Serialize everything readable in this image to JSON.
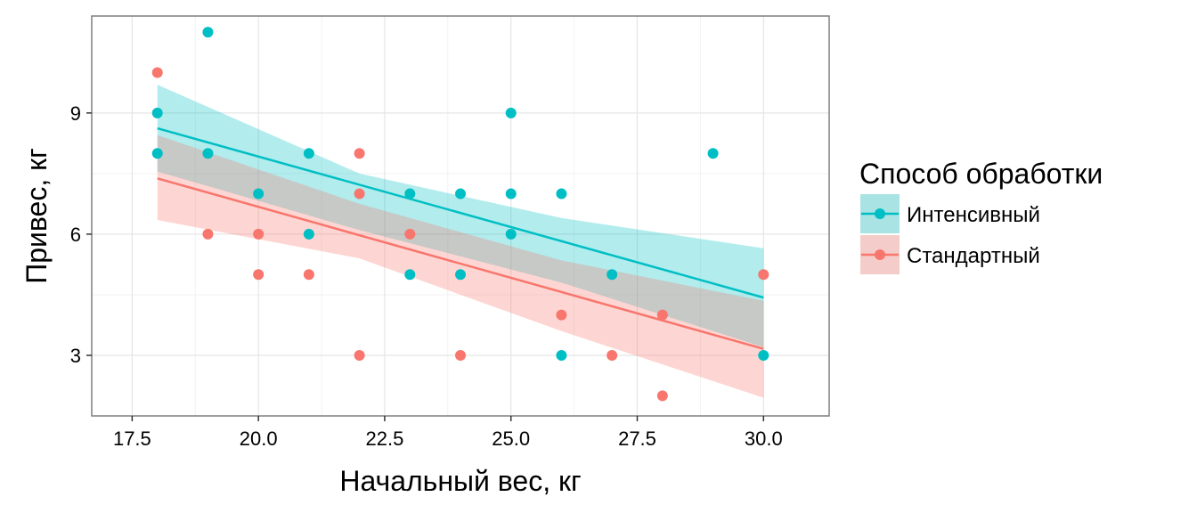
{
  "chart_data": {
    "type": "scatter",
    "title": "",
    "xlabel": "Начальный вес, кг",
    "ylabel": "Привес, кг",
    "xlim": [
      16.7,
      31.3
    ],
    "ylim": [
      1.5,
      11.4
    ],
    "x_ticks": [
      17.5,
      20.0,
      22.5,
      25.0,
      27.5,
      30.0
    ],
    "x_tick_labels": [
      "17.5",
      "20.0",
      "22.5",
      "25.0",
      "27.5",
      "30.0"
    ],
    "y_ticks": [
      3,
      6,
      9
    ],
    "y_tick_labels": [
      "3",
      "6",
      "9"
    ],
    "grid": true,
    "legend": {
      "title": "Способ обработки",
      "position": "right"
    },
    "series": [
      {
        "name": "Интенсивный",
        "color": "#00BFC4",
        "ribbon_color": "#00BFC4",
        "points": [
          [
            18,
            9
          ],
          [
            18,
            8
          ],
          [
            19,
            11
          ],
          [
            19,
            8
          ],
          [
            20,
            7
          ],
          [
            21,
            8
          ],
          [
            21,
            6
          ],
          [
            23,
            7
          ],
          [
            23,
            5
          ],
          [
            24,
            7
          ],
          [
            24,
            5
          ],
          [
            25,
            9
          ],
          [
            25,
            7
          ],
          [
            25,
            6
          ],
          [
            26,
            7
          ],
          [
            26,
            3
          ],
          [
            27,
            5
          ],
          [
            29,
            8
          ],
          [
            30,
            3
          ]
        ],
        "fit": {
          "x": [
            18,
            30
          ],
          "y": [
            8.62,
            4.43
          ]
        },
        "ribbon": {
          "x": [
            18,
            22,
            26,
            30
          ],
          "lower": [
            7.55,
            6.1,
            4.8,
            3.2
          ],
          "upper": [
            9.7,
            7.5,
            6.4,
            5.65
          ]
        }
      },
      {
        "name": "Стандартный",
        "color": "#F8766D",
        "ribbon_color": "#F8766D",
        "points": [
          [
            18,
            10
          ],
          [
            19,
            6
          ],
          [
            20,
            6
          ],
          [
            20,
            5
          ],
          [
            21,
            5
          ],
          [
            22,
            8
          ],
          [
            22,
            7
          ],
          [
            22,
            3
          ],
          [
            23,
            6
          ],
          [
            24,
            3
          ],
          [
            26,
            4
          ],
          [
            27,
            3
          ],
          [
            28,
            4
          ],
          [
            28,
            2
          ],
          [
            30,
            5
          ]
        ],
        "fit": {
          "x": [
            18,
            30
          ],
          "y": [
            7.38,
            3.16
          ]
        },
        "ribbon": {
          "x": [
            18,
            22,
            26,
            30
          ],
          "lower": [
            6.35,
            5.4,
            3.6,
            1.95
          ],
          "upper": [
            8.45,
            6.75,
            5.35,
            4.35
          ]
        }
      }
    ]
  }
}
